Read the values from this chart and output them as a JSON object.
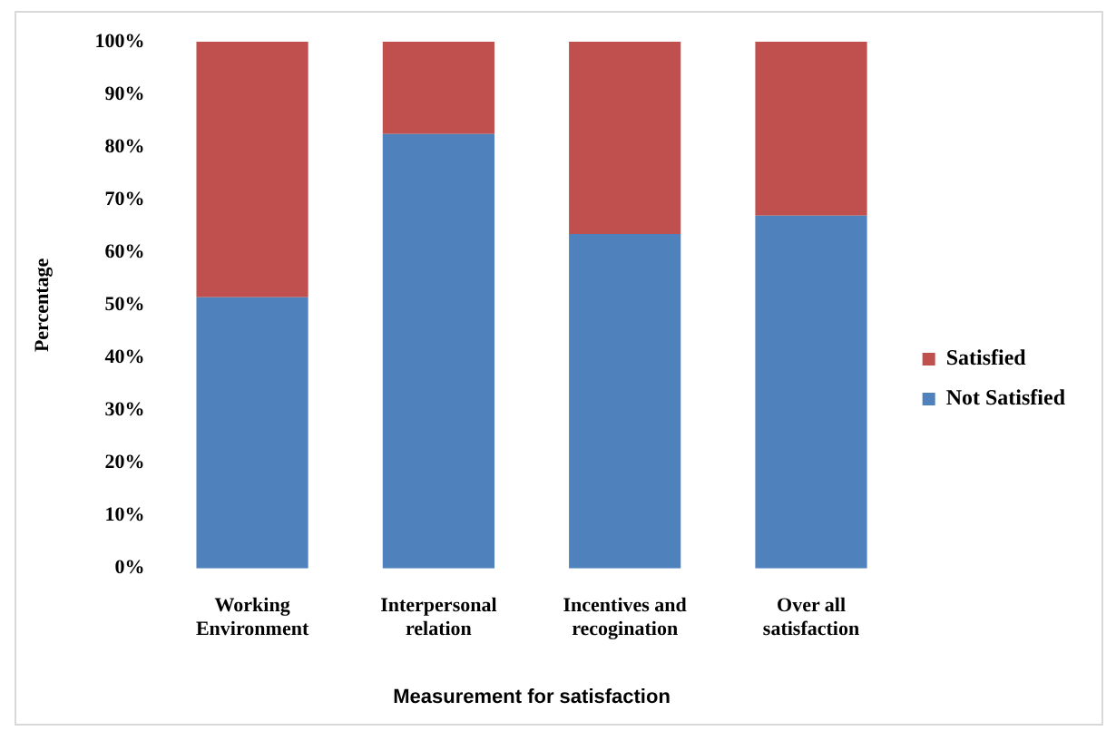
{
  "chart_data": {
    "type": "bar",
    "stacked": true,
    "xlabel": "Measurement for satisfaction",
    "ylabel": "Percentage",
    "categories": [
      "Working Environment",
      "Interpersonal relation",
      "Incentives and recogination",
      "Over all satisfaction"
    ],
    "series": [
      {
        "name": "Not Satisfied",
        "color": "#4f81bd",
        "values": [
          51.5,
          82.5,
          63.5,
          67
        ]
      },
      {
        "name": "Satisfied",
        "color": "#c0504d",
        "values": [
          48.5,
          17.5,
          36.5,
          33
        ]
      }
    ],
    "ylim": [
      0,
      100
    ],
    "yticks": [
      {
        "value": 0,
        "label": "0%"
      },
      {
        "value": 10,
        "label": "10%"
      },
      {
        "value": 20,
        "label": "20%"
      },
      {
        "value": 30,
        "label": "30%"
      },
      {
        "value": 40,
        "label": "40%"
      },
      {
        "value": 50,
        "label": "50%"
      },
      {
        "value": 60,
        "label": "60%"
      },
      {
        "value": 70,
        "label": "70%"
      },
      {
        "value": 80,
        "label": "80%"
      },
      {
        "value": 90,
        "label": "90%"
      },
      {
        "value": 100,
        "label": "100%"
      }
    ],
    "grid": false,
    "legend": "right"
  }
}
